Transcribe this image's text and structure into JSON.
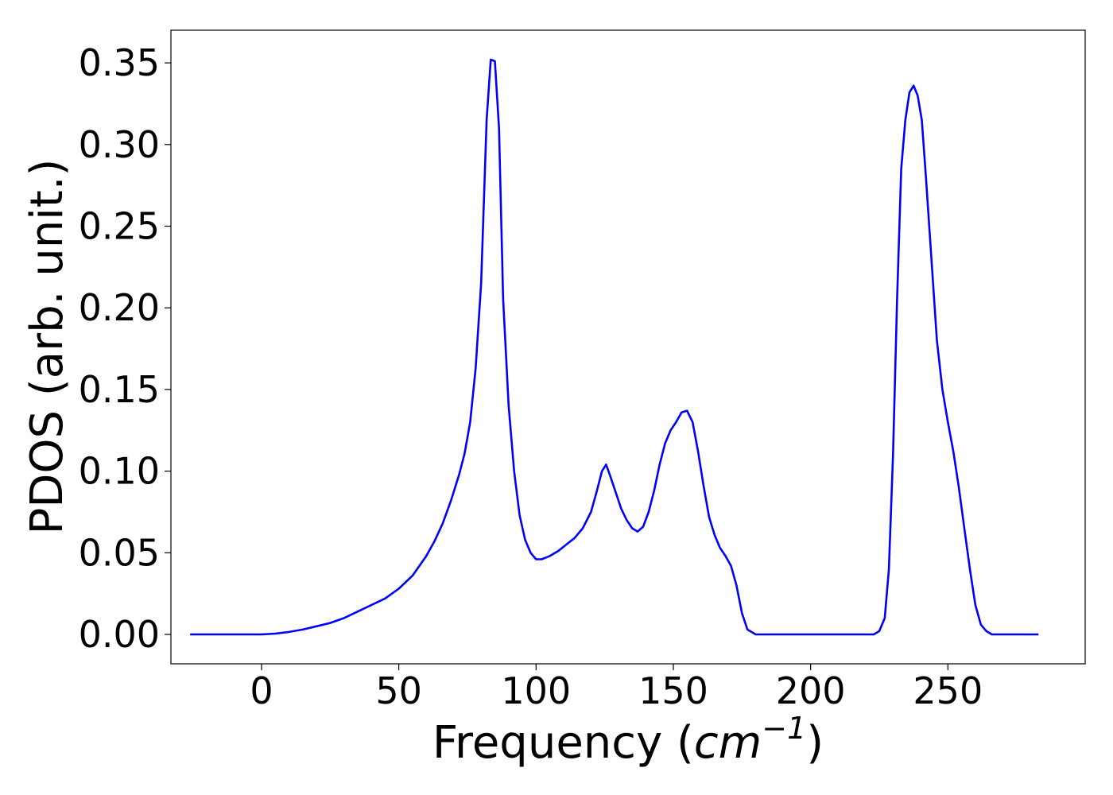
{
  "chart_data": {
    "type": "line",
    "title": "",
    "xlabel": "Frequency",
    "xlabel_unit_base": "cm",
    "xlabel_unit_exponent": "−1",
    "ylabel": "PDOS (arb. unit.)",
    "xlim": [
      -33,
      300
    ],
    "ylim": [
      -0.018,
      0.37
    ],
    "xticks": [
      0,
      50,
      100,
      150,
      200,
      250
    ],
    "xtick_labels": [
      "0",
      "50",
      "100",
      "150",
      "200",
      "250"
    ],
    "yticks": [
      0.0,
      0.05,
      0.1,
      0.15,
      0.2,
      0.25,
      0.3,
      0.35
    ],
    "ytick_labels": [
      "0.00",
      "0.05",
      "0.10",
      "0.15",
      "0.20",
      "0.25",
      "0.30",
      "0.35"
    ],
    "grid": false,
    "legend": false,
    "series": [
      {
        "color": "#0000ff",
        "x": [
          -26,
          0,
          5,
          10,
          15,
          20,
          25,
          30,
          35,
          40,
          45,
          50,
          55,
          60,
          63,
          66,
          69,
          72,
          74,
          76,
          78,
          80,
          82,
          83.5,
          85,
          86.5,
          88,
          90,
          92,
          94,
          96,
          98,
          100,
          102,
          105,
          108,
          111,
          114,
          117,
          120,
          122,
          124,
          125.5,
          127,
          129,
          131,
          133,
          135,
          137,
          139,
          141,
          143,
          145,
          147,
          149,
          151,
          153,
          155,
          157,
          159,
          161,
          163,
          165,
          167,
          169,
          171,
          173,
          175,
          177,
          180,
          190,
          200,
          210,
          220,
          223,
          225,
          227,
          228.5,
          230,
          231.5,
          233,
          234.5,
          236,
          237.5,
          239,
          240.5,
          242,
          244,
          246,
          248,
          250,
          252,
          254,
          256,
          258,
          260,
          262,
          264,
          266,
          270,
          283
        ],
        "y": [
          0.0,
          0.0,
          0.0005,
          0.0015,
          0.003,
          0.005,
          0.007,
          0.01,
          0.014,
          0.018,
          0.022,
          0.028,
          0.036,
          0.048,
          0.057,
          0.068,
          0.082,
          0.098,
          0.111,
          0.13,
          0.163,
          0.215,
          0.315,
          0.352,
          0.351,
          0.31,
          0.205,
          0.14,
          0.1,
          0.073,
          0.058,
          0.05,
          0.046,
          0.046,
          0.048,
          0.051,
          0.055,
          0.059,
          0.065,
          0.075,
          0.087,
          0.1,
          0.104,
          0.097,
          0.087,
          0.077,
          0.07,
          0.065,
          0.063,
          0.066,
          0.075,
          0.088,
          0.104,
          0.117,
          0.125,
          0.13,
          0.136,
          0.137,
          0.13,
          0.112,
          0.091,
          0.072,
          0.061,
          0.053,
          0.048,
          0.042,
          0.03,
          0.013,
          0.003,
          0.0,
          0.0,
          0.0,
          0.0,
          0.0,
          0.0,
          0.002,
          0.01,
          0.04,
          0.11,
          0.205,
          0.285,
          0.315,
          0.332,
          0.336,
          0.33,
          0.315,
          0.28,
          0.23,
          0.18,
          0.15,
          0.13,
          0.112,
          0.09,
          0.065,
          0.04,
          0.018,
          0.006,
          0.002,
          0.0,
          0.0,
          0.0
        ]
      }
    ]
  }
}
